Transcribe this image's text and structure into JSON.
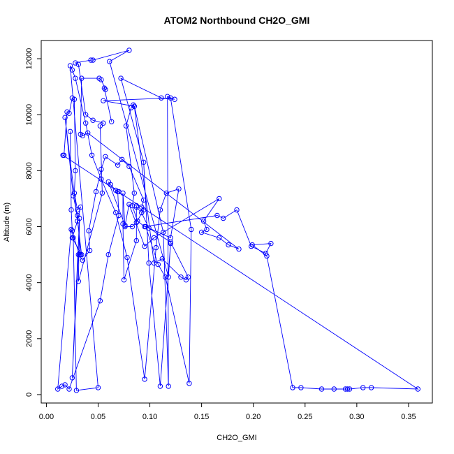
{
  "chart_data": {
    "type": "line",
    "title": "ATOM2 Northbound CH2O_GMI",
    "xlabel": "CH2O_GMI",
    "ylabel": "Altitude (m)",
    "xlim": [
      -0.005,
      0.373
    ],
    "ylim": [
      -300,
      12650
    ],
    "xticks": [
      0.0,
      0.05,
      0.1,
      0.15,
      0.2,
      0.25,
      0.3,
      0.35
    ],
    "xtick_labels": [
      "0.00",
      "0.05",
      "0.10",
      "0.15",
      "0.20",
      "0.25",
      "0.30",
      "0.35"
    ],
    "yticks": [
      0,
      2000,
      4000,
      6000,
      8000,
      10000,
      12000
    ],
    "ytick_labels": [
      "0",
      "2000",
      "4000",
      "6000",
      "8000",
      "10000",
      "12000"
    ],
    "grid": false,
    "series": [
      {
        "color": "#0000ff",
        "marker": "open-circle",
        "points": [
          [
            0.023,
            9400
          ],
          [
            0.024,
            6600
          ],
          [
            0.025,
            5850
          ],
          [
            0.026,
            5600
          ],
          [
            0.029,
            150
          ],
          [
            0.05,
            250
          ],
          [
            0.023,
            11750
          ],
          [
            0.025,
            11600
          ],
          [
            0.028,
            11300
          ],
          [
            0.038,
            9700
          ],
          [
            0.044,
            8550
          ],
          [
            0.053,
            7700
          ],
          [
            0.067,
            6500
          ],
          [
            0.078,
            4900
          ],
          [
            0.095,
            550
          ],
          [
            0.106,
            5250
          ],
          [
            0.11,
            6600
          ],
          [
            0.116,
            7200
          ],
          [
            0.128,
            7350
          ],
          [
            0.12,
            5600
          ],
          [
            0.096,
            6000
          ],
          [
            0.108,
            4650
          ],
          [
            0.115,
            4200
          ],
          [
            0.138,
            400
          ],
          [
            0.14,
            5900
          ],
          [
            0.12,
            10600
          ],
          [
            0.055,
            10500
          ],
          [
            0.085,
            10300
          ],
          [
            0.113,
            5800
          ],
          [
            0.118,
            300
          ],
          [
            0.117,
            10650
          ],
          [
            0.124,
            10550
          ],
          [
            0.111,
            10600
          ],
          [
            0.072,
            11300
          ],
          [
            0.094,
            8300
          ],
          [
            0.099,
            4700
          ],
          [
            0.11,
            300
          ],
          [
            0.12,
            5400
          ],
          [
            0.118,
            4200
          ],
          [
            0.061,
            11900
          ],
          [
            0.08,
            12300
          ],
          [
            0.045,
            11950
          ],
          [
            0.043,
            11950
          ],
          [
            0.028,
            11850
          ],
          [
            0.031,
            11800
          ],
          [
            0.038,
            10000
          ],
          [
            0.045,
            9800
          ],
          [
            0.055,
            9700
          ],
          [
            0.052,
            9600
          ],
          [
            0.054,
            7200
          ],
          [
            0.031,
            4050
          ],
          [
            0.032,
            6300
          ],
          [
            0.025,
            600
          ],
          [
            0.031,
            5000
          ],
          [
            0.035,
            4800
          ],
          [
            0.042,
            5150
          ],
          [
            0.041,
            5850
          ],
          [
            0.048,
            7250
          ],
          [
            0.053,
            8050
          ],
          [
            0.057,
            8500
          ],
          [
            0.069,
            8200
          ],
          [
            0.073,
            8400
          ],
          [
            0.08,
            8150
          ],
          [
            0.094,
            6950
          ],
          [
            0.092,
            6700
          ],
          [
            0.094,
            6600
          ],
          [
            0.087,
            6150
          ],
          [
            0.083,
            6000
          ],
          [
            0.076,
            6000
          ],
          [
            0.074,
            7200
          ],
          [
            0.074,
            6100
          ],
          [
            0.075,
            4100
          ],
          [
            0.087,
            5500
          ],
          [
            0.087,
            6750
          ],
          [
            0.087,
            6700
          ],
          [
            0.092,
            6500
          ],
          [
            0.099,
            5950
          ],
          [
            0.12,
            5450
          ],
          [
            0.137,
            4200
          ],
          [
            0.135,
            4100
          ],
          [
            0.13,
            4200
          ],
          [
            0.112,
            4850
          ],
          [
            0.104,
            4700
          ],
          [
            0.085,
            10300
          ],
          [
            0.084,
            10350
          ],
          [
            0.082,
            10250
          ],
          [
            0.077,
            9600
          ],
          [
            0.085,
            7200
          ],
          [
            0.083,
            6750
          ],
          [
            0.088,
            6200
          ],
          [
            0.095,
            6000
          ],
          [
            0.165,
            6400
          ],
          [
            0.171,
            6300
          ],
          [
            0.184,
            6600
          ],
          [
            0.198,
            5300
          ],
          [
            0.212,
            5050
          ],
          [
            0.217,
            5400
          ],
          [
            0.199,
            5350
          ],
          [
            0.213,
            4950
          ],
          [
            0.238,
            250
          ],
          [
            0.246,
            250
          ],
          [
            0.266,
            200
          ],
          [
            0.278,
            200
          ],
          [
            0.289,
            200
          ],
          [
            0.291,
            200
          ],
          [
            0.293,
            200
          ],
          [
            0.306,
            250
          ],
          [
            0.314,
            250
          ],
          [
            0.359,
            200
          ],
          [
            0.016,
            8550
          ],
          [
            0.017,
            8550
          ],
          [
            0.02,
            10100
          ],
          [
            0.022,
            10050
          ],
          [
            0.025,
            10600
          ],
          [
            0.027,
            10550
          ],
          [
            0.028,
            8000
          ],
          [
            0.027,
            7200
          ],
          [
            0.03,
            6600
          ],
          [
            0.033,
            6700
          ],
          [
            0.03,
            6200
          ],
          [
            0.025,
            5600
          ],
          [
            0.034,
            5000
          ],
          [
            0.018,
            9900
          ],
          [
            0.026,
            7100
          ],
          [
            0.03,
            6400
          ],
          [
            0.033,
            5000
          ],
          [
            0.032,
            5000
          ],
          [
            0.024,
            5900
          ],
          [
            0.011,
            200
          ],
          [
            0.015,
            300
          ],
          [
            0.018,
            350
          ],
          [
            0.022,
            200
          ],
          [
            0.052,
            3350
          ],
          [
            0.06,
            5000
          ],
          [
            0.07,
            6400
          ],
          [
            0.069,
            7250
          ],
          [
            0.07,
            7250
          ],
          [
            0.067,
            7300
          ],
          [
            0.062,
            7500
          ],
          [
            0.06,
            7600
          ],
          [
            0.076,
            6050
          ],
          [
            0.08,
            6800
          ],
          [
            0.095,
            5300
          ],
          [
            0.104,
            5600
          ],
          [
            0.167,
            7000
          ],
          [
            0.152,
            6200
          ],
          [
            0.155,
            5900
          ],
          [
            0.15,
            5800
          ],
          [
            0.167,
            5600
          ],
          [
            0.176,
            5350
          ],
          [
            0.186,
            5200
          ],
          [
            0.04,
            9350
          ],
          [
            0.035,
            9250
          ],
          [
            0.033,
            9300
          ],
          [
            0.034,
            11300
          ],
          [
            0.051,
            11300
          ],
          [
            0.053,
            11250
          ],
          [
            0.057,
            10900
          ],
          [
            0.056,
            10950
          ],
          [
            0.063,
            9750
          ]
        ]
      }
    ]
  }
}
